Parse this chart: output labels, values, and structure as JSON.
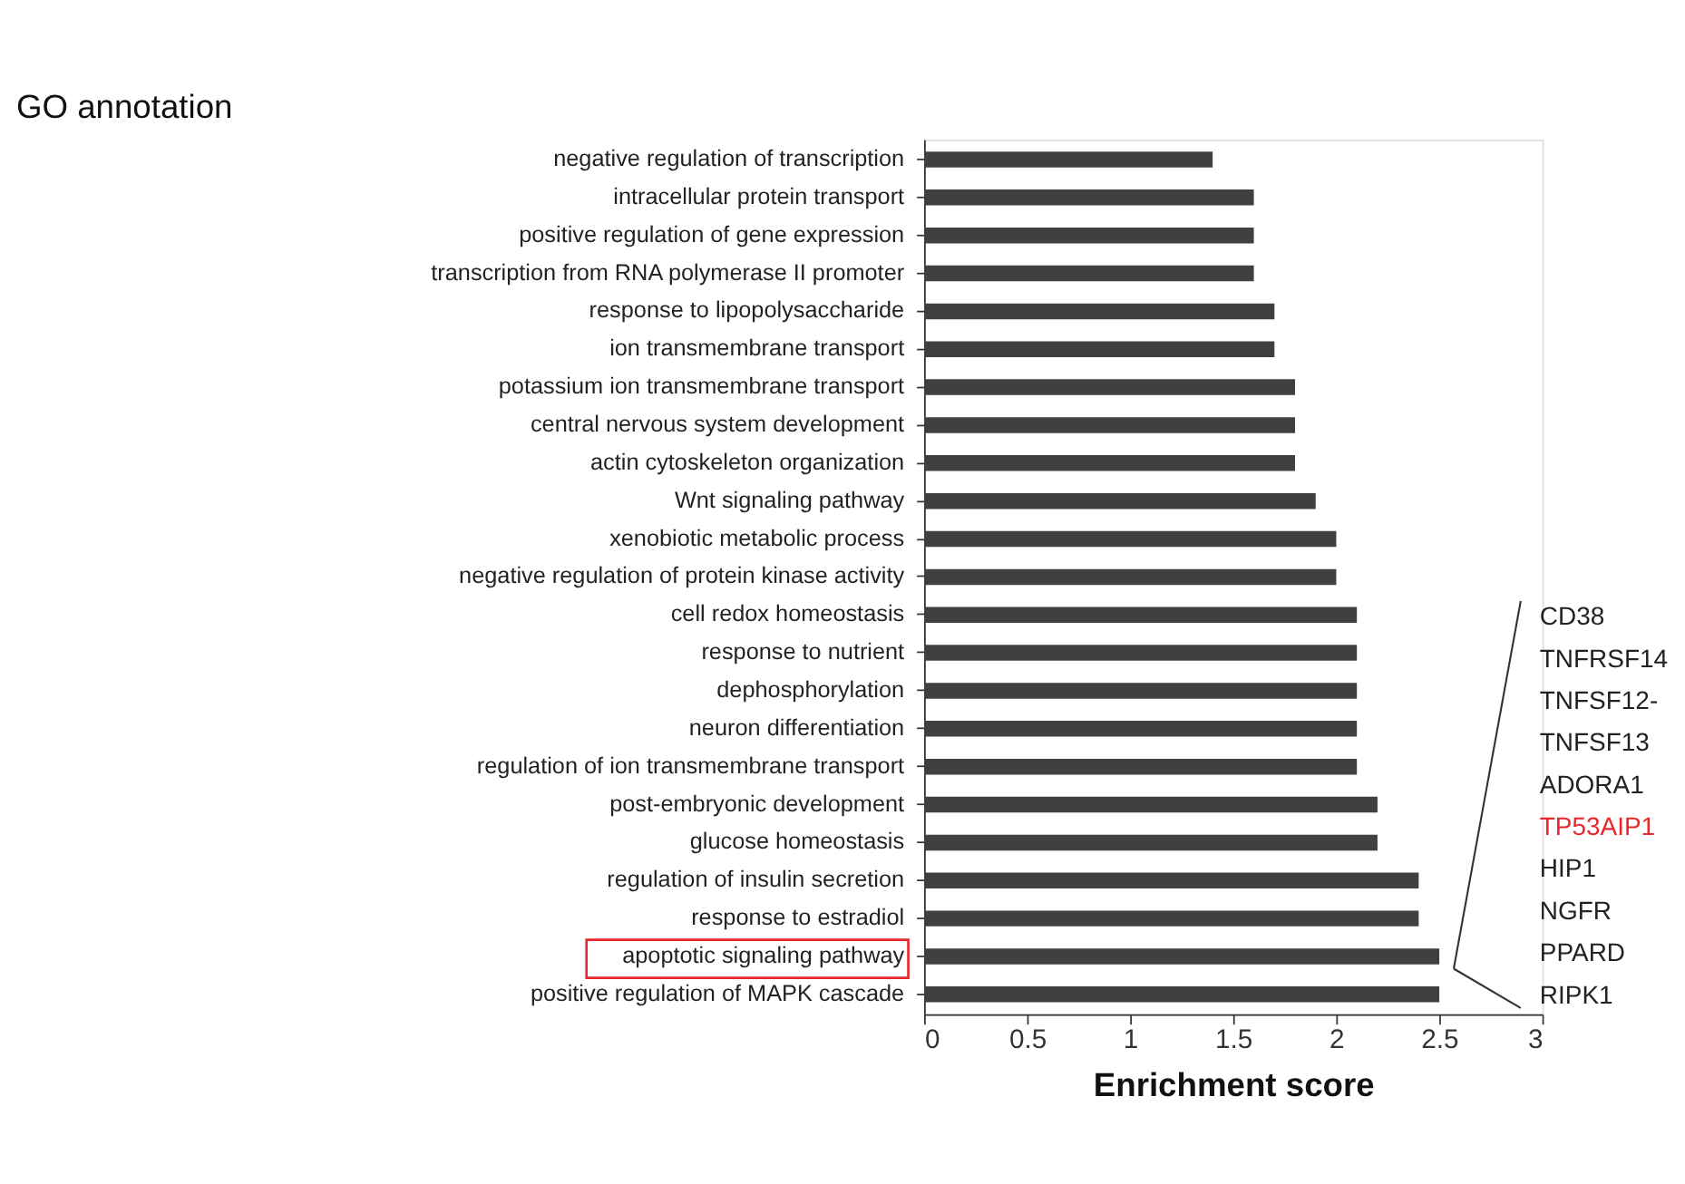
{
  "chart_data": {
    "type": "bar",
    "orientation": "horizontal",
    "title": "GO annotation",
    "xlabel": "Enrichment score",
    "categories": [
      "negative regulation of transcription",
      "intracellular protein transport",
      "positive regulation of gene expression",
      "transcription from RNA polymerase II promoter",
      "response to lipopolysaccharide",
      "ion transmembrane transport",
      "potassium ion transmembrane transport",
      "central nervous system development",
      "actin cytoskeleton organization",
      "Wnt signaling pathway",
      "xenobiotic metabolic process",
      "negative regulation of protein kinase activity",
      "cell redox homeostasis",
      "response to nutrient",
      "dephosphorylation",
      "neuron differentiation",
      "regulation of ion transmembrane transport",
      "post-embryonic development",
      "glucose homeostasis",
      "regulation of insulin secretion",
      "response to estradiol",
      "apoptotic signaling pathway",
      "positive regulation of MAPK cascade"
    ],
    "values": [
      1.4,
      1.6,
      1.6,
      1.6,
      1.7,
      1.7,
      1.8,
      1.8,
      1.8,
      1.9,
      2.0,
      2.0,
      2.1,
      2.1,
      2.1,
      2.1,
      2.1,
      2.2,
      2.2,
      2.4,
      2.4,
      2.5,
      2.5
    ],
    "color": "#404040",
    "xlim": [
      0,
      3
    ],
    "xticks": [
      0,
      0.5,
      1,
      1.5,
      2,
      2.5,
      3
    ],
    "grid": false,
    "annotations": [
      "CD38",
      "TNFRSF14",
      "TNFSF12-",
      "TNFSF13",
      "ADORA1",
      "TP53AIP1",
      "HIP1",
      "NGFR",
      "PPARD",
      "RIPK1"
    ]
  }
}
